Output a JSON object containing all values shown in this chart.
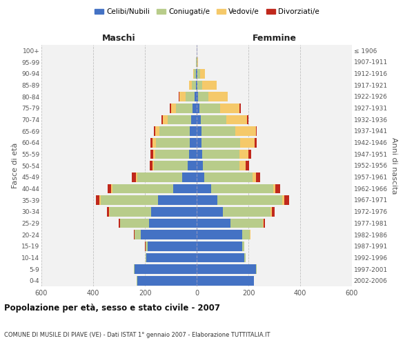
{
  "age_groups": [
    "0-4",
    "5-9",
    "10-14",
    "15-19",
    "20-24",
    "25-29",
    "30-34",
    "35-39",
    "40-44",
    "45-49",
    "50-54",
    "55-59",
    "60-64",
    "65-69",
    "70-74",
    "75-79",
    "80-84",
    "85-89",
    "90-94",
    "95-99",
    "100+"
  ],
  "birth_years": [
    "2002-2006",
    "1997-2001",
    "1992-1996",
    "1987-1991",
    "1982-1986",
    "1977-1981",
    "1972-1976",
    "1967-1971",
    "1962-1966",
    "1957-1961",
    "1952-1956",
    "1947-1951",
    "1942-1946",
    "1937-1941",
    "1932-1936",
    "1927-1931",
    "1922-1926",
    "1917-1921",
    "1912-1916",
    "1907-1911",
    "≤ 1906"
  ],
  "male": {
    "celibi": [
      230,
      240,
      195,
      190,
      215,
      185,
      175,
      150,
      90,
      55,
      35,
      30,
      28,
      28,
      22,
      15,
      8,
      4,
      3,
      1,
      0
    ],
    "coniugati": [
      2,
      2,
      2,
      8,
      25,
      110,
      160,
      220,
      235,
      175,
      130,
      130,
      130,
      115,
      90,
      65,
      35,
      15,
      8,
      2,
      0
    ],
    "vedovi": [
      0,
      0,
      0,
      0,
      1,
      2,
      3,
      5,
      5,
      5,
      6,
      8,
      12,
      18,
      20,
      20,
      25,
      10,
      2,
      0,
      0
    ],
    "divorziati": [
      0,
      0,
      0,
      1,
      2,
      5,
      8,
      15,
      15,
      15,
      10,
      10,
      8,
      5,
      5,
      5,
      1,
      0,
      0,
      0,
      0
    ]
  },
  "female": {
    "nubili": [
      220,
      230,
      185,
      175,
      175,
      130,
      100,
      80,
      55,
      30,
      25,
      20,
      18,
      18,
      15,
      10,
      5,
      3,
      3,
      1,
      0
    ],
    "coniugate": [
      2,
      2,
      3,
      8,
      30,
      125,
      185,
      250,
      240,
      185,
      140,
      145,
      150,
      130,
      100,
      80,
      40,
      18,
      10,
      2,
      0
    ],
    "vedove": [
      0,
      0,
      0,
      1,
      2,
      3,
      5,
      8,
      10,
      15,
      25,
      35,
      55,
      80,
      80,
      75,
      75,
      55,
      20,
      2,
      0
    ],
    "divorziate": [
      0,
      0,
      0,
      1,
      2,
      5,
      12,
      20,
      18,
      15,
      12,
      10,
      10,
      5,
      5,
      5,
      1,
      1,
      0,
      0,
      0
    ]
  },
  "colors": {
    "celibi_nubili": "#4472C4",
    "coniugati": "#B8CC8A",
    "vedovi": "#F5C96A",
    "divorziati": "#C0281C"
  },
  "xlim": 600,
  "title": "Popolazione per età, sesso e stato civile - 2007",
  "subtitle": "COMUNE DI MUSILE DI PIAVE (VE) - Dati ISTAT 1° gennaio 2007 - Elaborazione TUTTITALIA.IT",
  "ylabel_left": "Fasce di età",
  "ylabel_right": "Anni di nascita",
  "legend_labels": [
    "Celibi/Nubili",
    "Coniugati/e",
    "Vedovi/e",
    "Divorziati/e"
  ],
  "header_maschi": "Maschi",
  "header_femmine": "Femmine",
  "background_color": "#FFFFFF",
  "plot_bg_color": "#F2F2F2",
  "grid_color": "#BBBBBB"
}
